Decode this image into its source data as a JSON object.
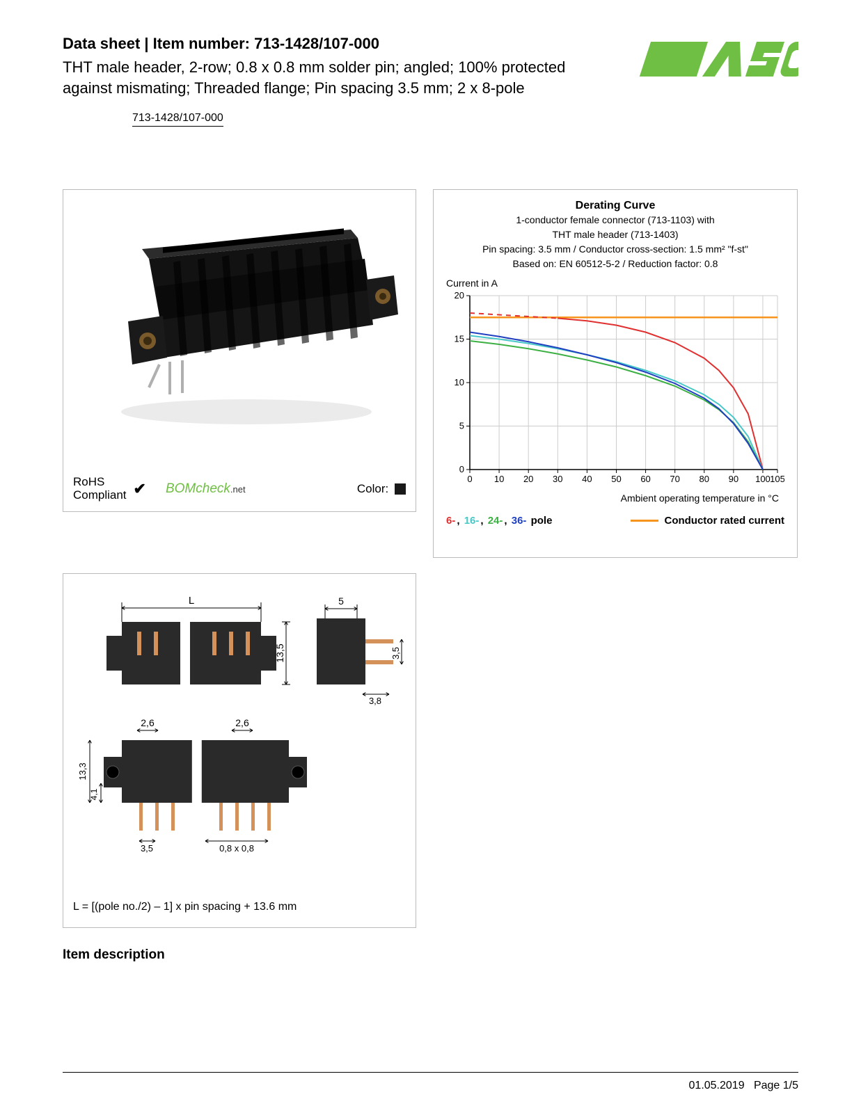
{
  "header": {
    "title_prefix": "Data sheet  |  Item number: ",
    "item_number": "713-1428/107-000",
    "description": "THT male header, 2-row; 0.8 x 0.8 mm solder pin; angled; 100% protected against mismating; Threaded flange; Pin spacing 3.5 mm; 2 x 8-pole",
    "item_link": "713-1428/107-000"
  },
  "brand": {
    "name": "WAGO",
    "color": "#6fbf44"
  },
  "product_panel": {
    "rohs_line1": "RoHS",
    "rohs_line2": "Compliant",
    "bomcheck_text": "BOMcheck",
    "bomcheck_suffix": ".net",
    "color_label": "Color:",
    "color_swatch_hex": "#1a1a1a",
    "connector_body_color": "#1e1e1e",
    "connector_pin_color": "#b0b0b0"
  },
  "chart": {
    "title": "Derating Curve",
    "subtitle_lines": [
      "1-conductor female connector (713-1103) with",
      "THT male header (713-1403)",
      "Pin spacing: 3.5 mm / Conductor cross-section: 1.5 mm² \"f-st\"",
      "Based on: EN 60512-5-2 / Reduction factor: 0.8"
    ],
    "y_label": "Current in A",
    "x_label": "Ambient operating temperature in °C",
    "xlim": [
      0,
      105
    ],
    "ylim": [
      0,
      20
    ],
    "xtick_values": [
      0,
      10,
      20,
      30,
      40,
      50,
      60,
      70,
      80,
      90,
      100,
      105
    ],
    "xtick_labels": [
      "0",
      "10",
      "20",
      "30",
      "40",
      "50",
      "60",
      "70",
      "80",
      "90",
      "100",
      "105"
    ],
    "ytick_values": [
      0,
      5,
      10,
      15,
      20
    ],
    "ytick_labels": [
      "0",
      "5",
      "10",
      "15",
      "20"
    ],
    "grid_color": "#cccccc",
    "background_color": "#ffffff",
    "axis_color": "#000000",
    "rated_current": {
      "value": 17.5,
      "color": "#f7941d",
      "width": 2.5
    },
    "series": [
      {
        "name": "6-pole",
        "color": "#e03030",
        "width": 2,
        "dash_until_x": 30,
        "points": [
          [
            0,
            18.0
          ],
          [
            10,
            17.8
          ],
          [
            20,
            17.6
          ],
          [
            30,
            17.4
          ],
          [
            40,
            17.1
          ],
          [
            50,
            16.6
          ],
          [
            60,
            15.8
          ],
          [
            70,
            14.6
          ],
          [
            80,
            12.8
          ],
          [
            85,
            11.4
          ],
          [
            90,
            9.4
          ],
          [
            95,
            6.4
          ],
          [
            100,
            0
          ]
        ]
      },
      {
        "name": "16-pole",
        "color": "#48c8c8",
        "width": 2,
        "points": [
          [
            0,
            15.4
          ],
          [
            10,
            15.0
          ],
          [
            20,
            14.5
          ],
          [
            30,
            13.9
          ],
          [
            40,
            13.2
          ],
          [
            50,
            12.4
          ],
          [
            60,
            11.4
          ],
          [
            70,
            10.2
          ],
          [
            80,
            8.6
          ],
          [
            85,
            7.5
          ],
          [
            90,
            6.0
          ],
          [
            95,
            3.8
          ],
          [
            100,
            0
          ]
        ]
      },
      {
        "name": "24-pole",
        "color": "#3cb043",
        "width": 2,
        "points": [
          [
            0,
            14.8
          ],
          [
            10,
            14.4
          ],
          [
            20,
            13.9
          ],
          [
            30,
            13.3
          ],
          [
            40,
            12.6
          ],
          [
            50,
            11.8
          ],
          [
            60,
            10.8
          ],
          [
            70,
            9.6
          ],
          [
            80,
            8.0
          ],
          [
            85,
            6.9
          ],
          [
            90,
            5.4
          ],
          [
            95,
            3.2
          ],
          [
            100,
            0
          ]
        ]
      },
      {
        "name": "36-pole",
        "color": "#2040c0",
        "width": 2,
        "points": [
          [
            0,
            15.8
          ],
          [
            10,
            15.3
          ],
          [
            20,
            14.7
          ],
          [
            30,
            14.0
          ],
          [
            40,
            13.2
          ],
          [
            50,
            12.3
          ],
          [
            60,
            11.2
          ],
          [
            70,
            9.9
          ],
          [
            80,
            8.2
          ],
          [
            85,
            7.0
          ],
          [
            90,
            5.3
          ],
          [
            95,
            3.0
          ],
          [
            100,
            0
          ]
        ]
      }
    ],
    "legend": {
      "poles": [
        {
          "label": "6-",
          "color": "#e03030"
        },
        {
          "label": "16-",
          "color": "#48c8c8"
        },
        {
          "label": "24-",
          "color": "#3cb043"
        },
        {
          "label": "36-",
          "color": "#2040c0"
        }
      ],
      "poles_suffix": " pole",
      "rated_label": "Conductor rated current"
    }
  },
  "dimensions": {
    "L_label": "L",
    "top_gap": "5",
    "height_1": "13,5",
    "side_h": "3,5",
    "side_w": "3,8",
    "pitch_top": "2,6",
    "front_h": "13,3",
    "front_h2": "4,1",
    "pitch": "3,5",
    "pin_size": "0,8 x 0,8",
    "formula": "L = [(pole no./2) – 1] x pin spacing + 13.6 mm",
    "body_color": "#2a2a2a",
    "pin_color": "#d4915a",
    "line_color": "#000000"
  },
  "sections": {
    "item_description": "Item description"
  },
  "footer": {
    "date": "01.05.2019",
    "page": "Page 1/5"
  }
}
